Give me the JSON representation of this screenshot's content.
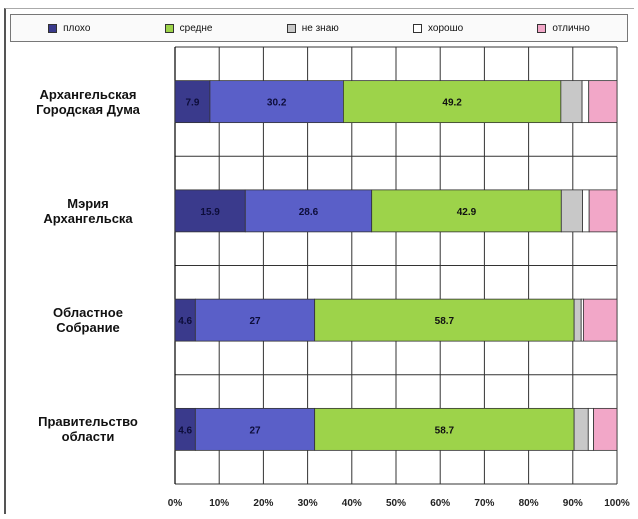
{
  "colors": {
    "grid": "#333333",
    "gap": "#ffffff"
  },
  "chart_data": {
    "type": "bar",
    "orientation": "horizontal",
    "stacked": true,
    "percent": true,
    "legend_position": "top",
    "grid": true,
    "xlim": [
      0,
      100
    ],
    "x_ticks": [
      "0%",
      "10%",
      "20%",
      "30%",
      "40%",
      "50%",
      "60%",
      "70%",
      "80%",
      "90%",
      "100%"
    ],
    "categories": [
      [
        "Архангельская",
        "Городская Дума"
      ],
      [
        "Мэрия",
        "Архангельска"
      ],
      [
        "Областное",
        "Собрание"
      ],
      [
        "Правительство",
        "области"
      ]
    ],
    "series": [
      {
        "name": "плохо",
        "color": "#3a3a8c",
        "values": [
          7.9,
          15.9,
          4.6,
          4.6
        ],
        "labels": [
          "7.9",
          "15.9",
          "4.6",
          "4.6"
        ]
      },
      {
        "name": "",
        "color": "#5a5fc8",
        "values": [
          30.2,
          28.6,
          27,
          27
        ],
        "labels": [
          "30.2",
          "28.6",
          "27",
          "27"
        ]
      },
      {
        "name": "средне",
        "color": "#9dd34a",
        "values": [
          49.2,
          42.9,
          58.7,
          58.7
        ],
        "labels": [
          "49.2",
          "42.9",
          "58.7",
          "58.7"
        ]
      },
      {
        "name": "не знаю",
        "color": "#c8c8c8",
        "values": [
          4.8,
          4.8,
          1.6,
          3.2
        ],
        "labels": [
          "",
          "",
          "",
          ""
        ]
      },
      {
        "name": "хорошо",
        "color": "#ffffff",
        "values": [
          1.5,
          1.5,
          0.5,
          1.2
        ],
        "labels": [
          "",
          "",
          "",
          ""
        ]
      },
      {
        "name": "отлично",
        "color": "#f2a7c8",
        "values": [
          6.4,
          6.3,
          7.6,
          5.3
        ],
        "labels": [
          "",
          "",
          "",
          ""
        ]
      }
    ],
    "legend": [
      {
        "name": "плохо",
        "color": "#3a3a8c"
      },
      {
        "name": "средне",
        "color": "#9dd34a"
      },
      {
        "name": "не знаю",
        "color": "#c8c8c8"
      },
      {
        "name": "хорошо",
        "color": "#ffffff"
      },
      {
        "name": "отлично",
        "color": "#f2a7c8"
      }
    ]
  }
}
